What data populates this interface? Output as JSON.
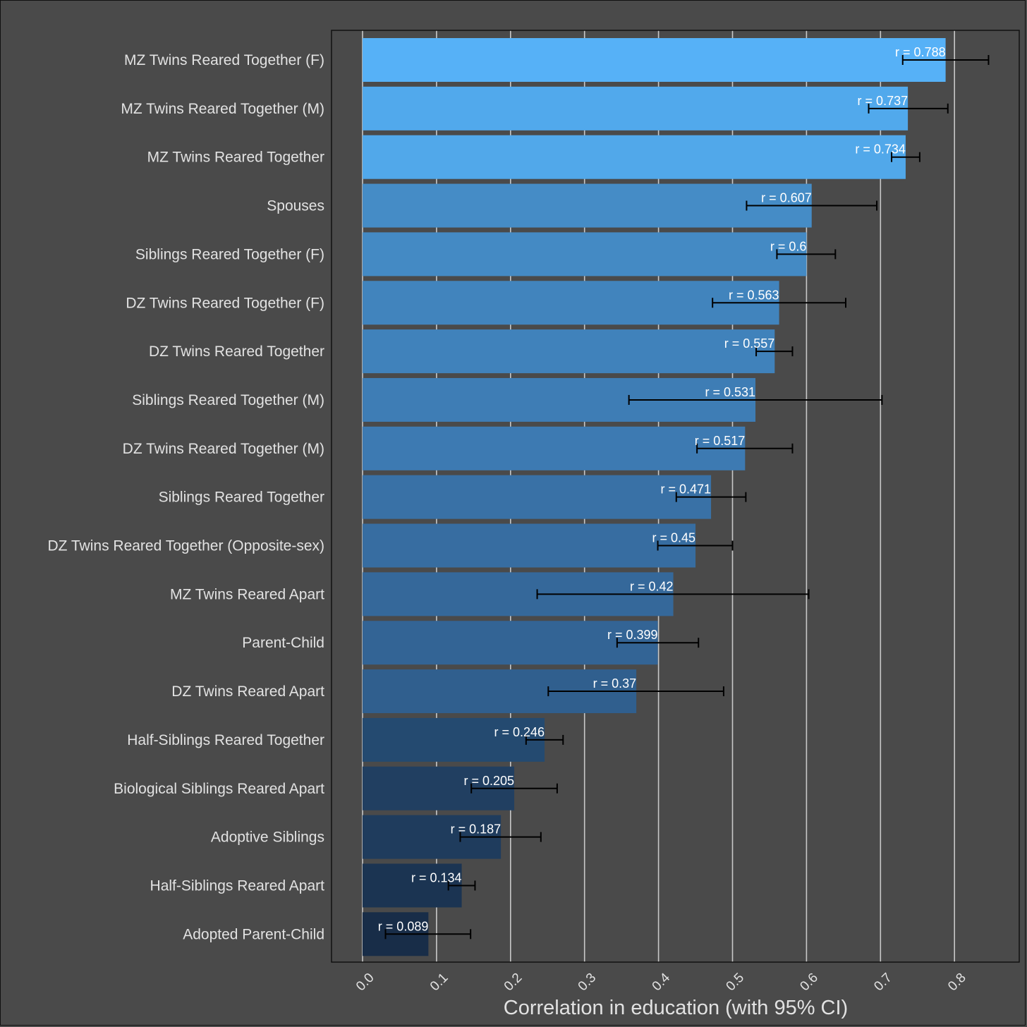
{
  "chart_data": {
    "type": "bar",
    "orientation": "horizontal",
    "xlabel": "Correlation in education (with 95% CI)",
    "ylabel": "",
    "xlim": [
      0,
      0.885
    ],
    "xticks": [
      "0.0",
      "0.1",
      "0.2",
      "0.3",
      "0.4",
      "0.5",
      "0.6",
      "0.7",
      "0.8"
    ],
    "grid": "vertical",
    "bars": [
      {
        "category": "MZ Twins Reared Together (F)",
        "value": 0.788,
        "ci": [
          0.73,
          0.846
        ],
        "label": "r = 0.788",
        "color": "#56b1f7"
      },
      {
        "category": "MZ Twins Reared Together (M)",
        "value": 0.737,
        "ci": [
          0.684,
          0.791
        ],
        "label": "r = 0.737",
        "color": "#51a9ec"
      },
      {
        "category": "MZ Twins Reared Together",
        "value": 0.734,
        "ci": [
          0.715,
          0.753
        ],
        "label": "r = 0.734",
        "color": "#51a8ea"
      },
      {
        "category": "Spouses",
        "value": 0.607,
        "ci": [
          0.519,
          0.695
        ],
        "label": "r = 0.607",
        "color": "#458cc6"
      },
      {
        "category": "Siblings Reared Together (F)",
        "value": 0.6,
        "ci": [
          0.56,
          0.639
        ],
        "label": "r = 0.6",
        "color": "#448ac4"
      },
      {
        "category": "DZ Twins Reared Together (F)",
        "value": 0.563,
        "ci": [
          0.473,
          0.653
        ],
        "label": "r = 0.563",
        "color": "#4184bd"
      },
      {
        "category": "DZ Twins Reared Together",
        "value": 0.557,
        "ci": [
          0.532,
          0.581
        ],
        "label": "r = 0.557",
        "color": "#4082bb"
      },
      {
        "category": "Siblings Reared Together (M)",
        "value": 0.531,
        "ci": [
          0.36,
          0.702
        ],
        "label": "r = 0.531",
        "color": "#3e7db5"
      },
      {
        "category": "DZ Twins Reared Together (M)",
        "value": 0.517,
        "ci": [
          0.452,
          0.581
        ],
        "label": "r = 0.517",
        "color": "#3d7ab2"
      },
      {
        "category": "Siblings Reared Together",
        "value": 0.471,
        "ci": [
          0.424,
          0.518
        ],
        "label": "r = 0.471",
        "color": "#3971a6"
      },
      {
        "category": "DZ Twins Reared Together (Opposite-sex)",
        "value": 0.45,
        "ci": [
          0.399,
          0.5
        ],
        "label": "r = 0.45",
        "color": "#376da1"
      },
      {
        "category": "MZ Twins Reared Apart",
        "value": 0.42,
        "ci": [
          0.236,
          0.603
        ],
        "label": "r = 0.42",
        "color": "#35689a"
      },
      {
        "category": "Parent-Child",
        "value": 0.399,
        "ci": [
          0.344,
          0.454
        ],
        "label": "r = 0.399",
        "color": "#336495"
      },
      {
        "category": "DZ Twins Reared Apart",
        "value": 0.37,
        "ci": [
          0.251,
          0.488
        ],
        "label": "r = 0.37",
        "color": "#305f8e"
      },
      {
        "category": "Half-Siblings Reared Together",
        "value": 0.246,
        "ci": [
          0.221,
          0.271
        ],
        "label": "r = 0.246",
        "color": "#244a70"
      },
      {
        "category": "Biological Siblings Reared Apart",
        "value": 0.205,
        "ci": [
          0.147,
          0.263
        ],
        "label": "r = 0.205",
        "color": "#213f61"
      },
      {
        "category": "Adoptive Siblings",
        "value": 0.187,
        "ci": [
          0.132,
          0.241
        ],
        "label": "r = 0.187",
        "color": "#1f3c5d"
      },
      {
        "category": "Half-Siblings Reared Apart",
        "value": 0.134,
        "ci": [
          0.116,
          0.152
        ],
        "label": "r = 0.134",
        "color": "#1b3452"
      },
      {
        "category": "Adopted Parent-Child",
        "value": 0.089,
        "ci": [
          0.031,
          0.146
        ],
        "label": "r = 0.089",
        "color": "#182d48"
      }
    ]
  },
  "colors": {
    "background": "#4a4a4a",
    "gridline": "#c8c8c8",
    "errorbar": "#000000",
    "text": "#e2e2e2"
  }
}
